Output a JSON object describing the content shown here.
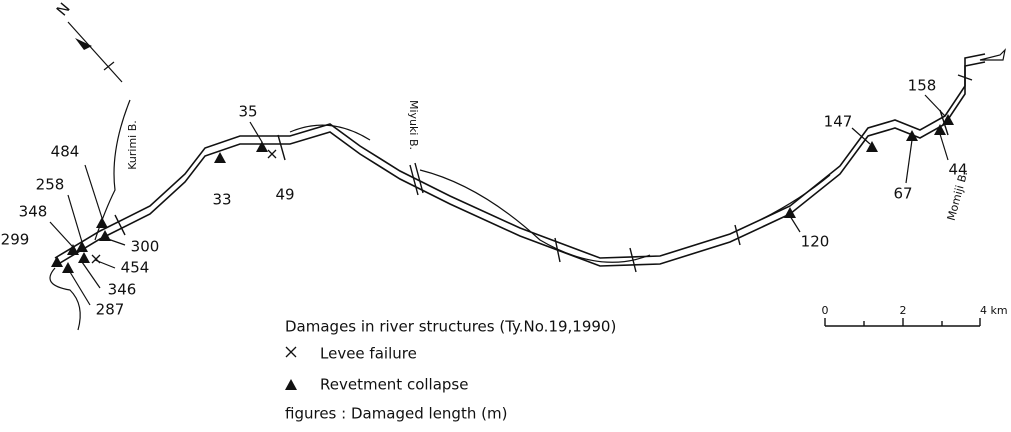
{
  "north": "N",
  "bridges": [
    "Kurimi B.",
    "Miyuki B.",
    "Momiji B."
  ],
  "damage_labels": [
    "35",
    "33",
    "49",
    "484",
    "258",
    "348",
    "299",
    "300",
    "454",
    "346",
    "287",
    "147",
    "67",
    "158",
    "44",
    "120"
  ],
  "legend": {
    "title": "Damages in river structures (Ty.No.19,1990)",
    "items": [
      "Levee failure",
      "Revetment collapse"
    ],
    "note": "figures : Damaged length (m)"
  },
  "scale": {
    "ticks": [
      "0",
      "2",
      "4 km"
    ]
  }
}
